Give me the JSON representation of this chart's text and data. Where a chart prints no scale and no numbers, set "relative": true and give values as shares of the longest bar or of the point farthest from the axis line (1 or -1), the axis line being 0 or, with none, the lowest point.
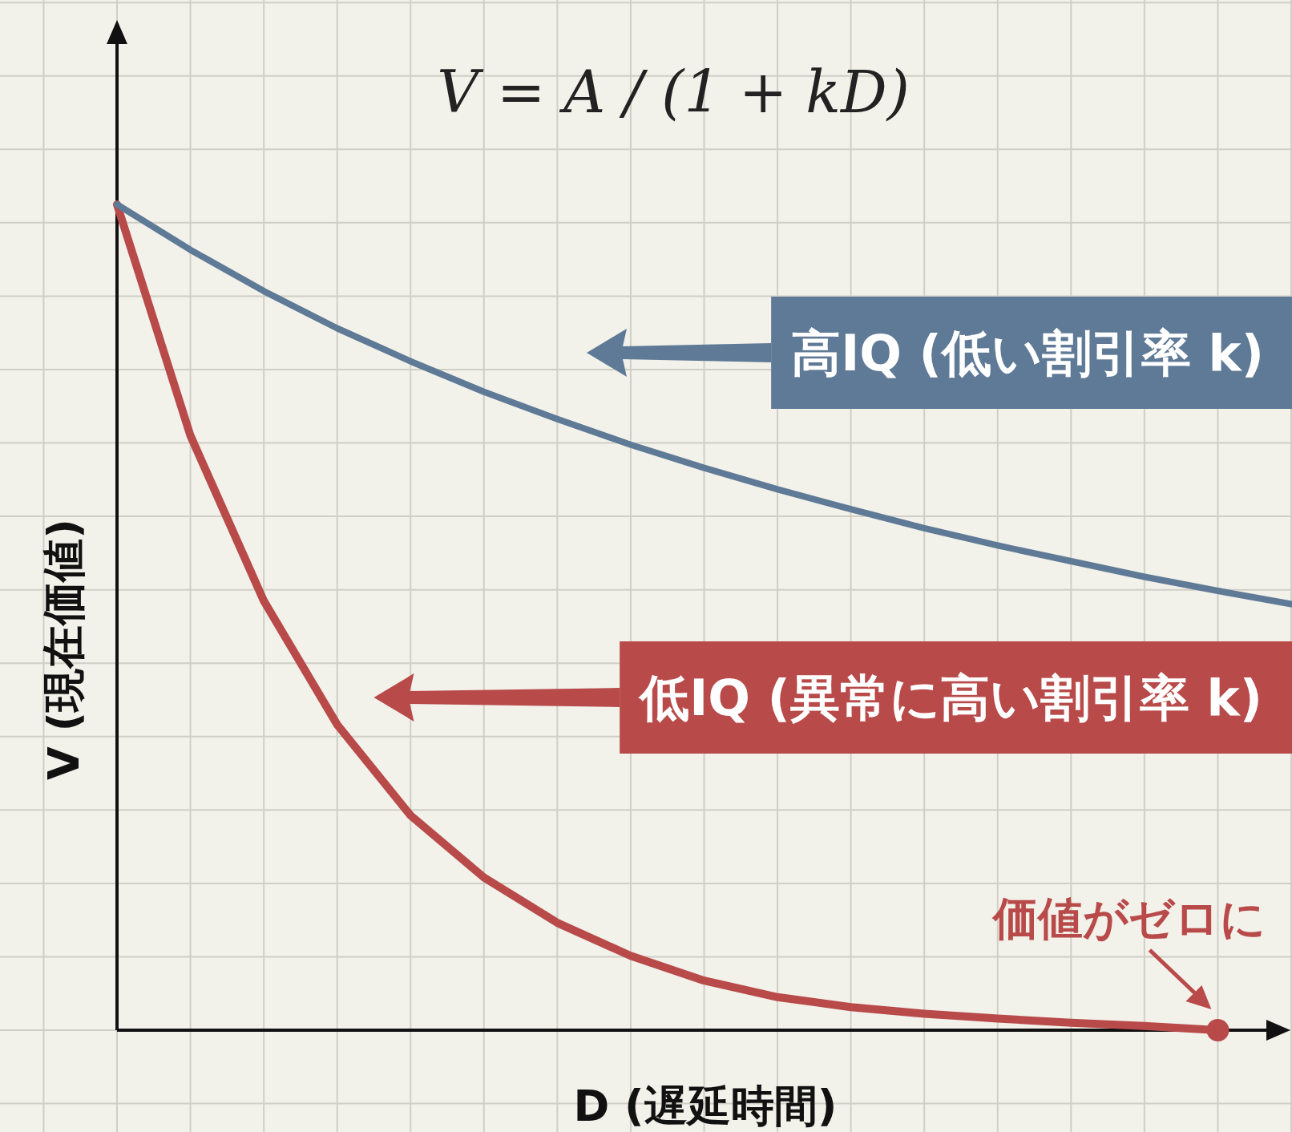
{
  "chart_data": {
    "type": "line",
    "relative": true,
    "grid": true,
    "legend": "right",
    "title": "V = A / (1 + kD)",
    "xlabel": "D (遅延時間)",
    "ylabel": "V (現在価値)",
    "categories": [
      null,
      null,
      null,
      null,
      null,
      null,
      null,
      null,
      null,
      null,
      null,
      null,
      null,
      null,
      null,
      null,
      null
    ],
    "series": [
      {
        "name": "低IQ (異常に高い割引率 k)",
        "color": "#b94a4a",
        "values": [
          1.0,
          0.72,
          0.52,
          0.37,
          0.26,
          0.185,
          0.13,
          0.09,
          0.06,
          0.04,
          0.028,
          0.02,
          0.014,
          0.009,
          0.005,
          0.0,
          null
        ]
      },
      {
        "name": "高IQ (低い割引率 k)",
        "color": "#5f7a96",
        "values": [
          1.0,
          0.945,
          0.895,
          0.85,
          0.81,
          0.773,
          0.74,
          0.709,
          0.681,
          0.655,
          0.631,
          0.608,
          0.587,
          0.568,
          0.549,
          0.532,
          0.516
        ]
      }
    ],
    "annotations": [
      "価値がゼロに"
    ]
  }
}
